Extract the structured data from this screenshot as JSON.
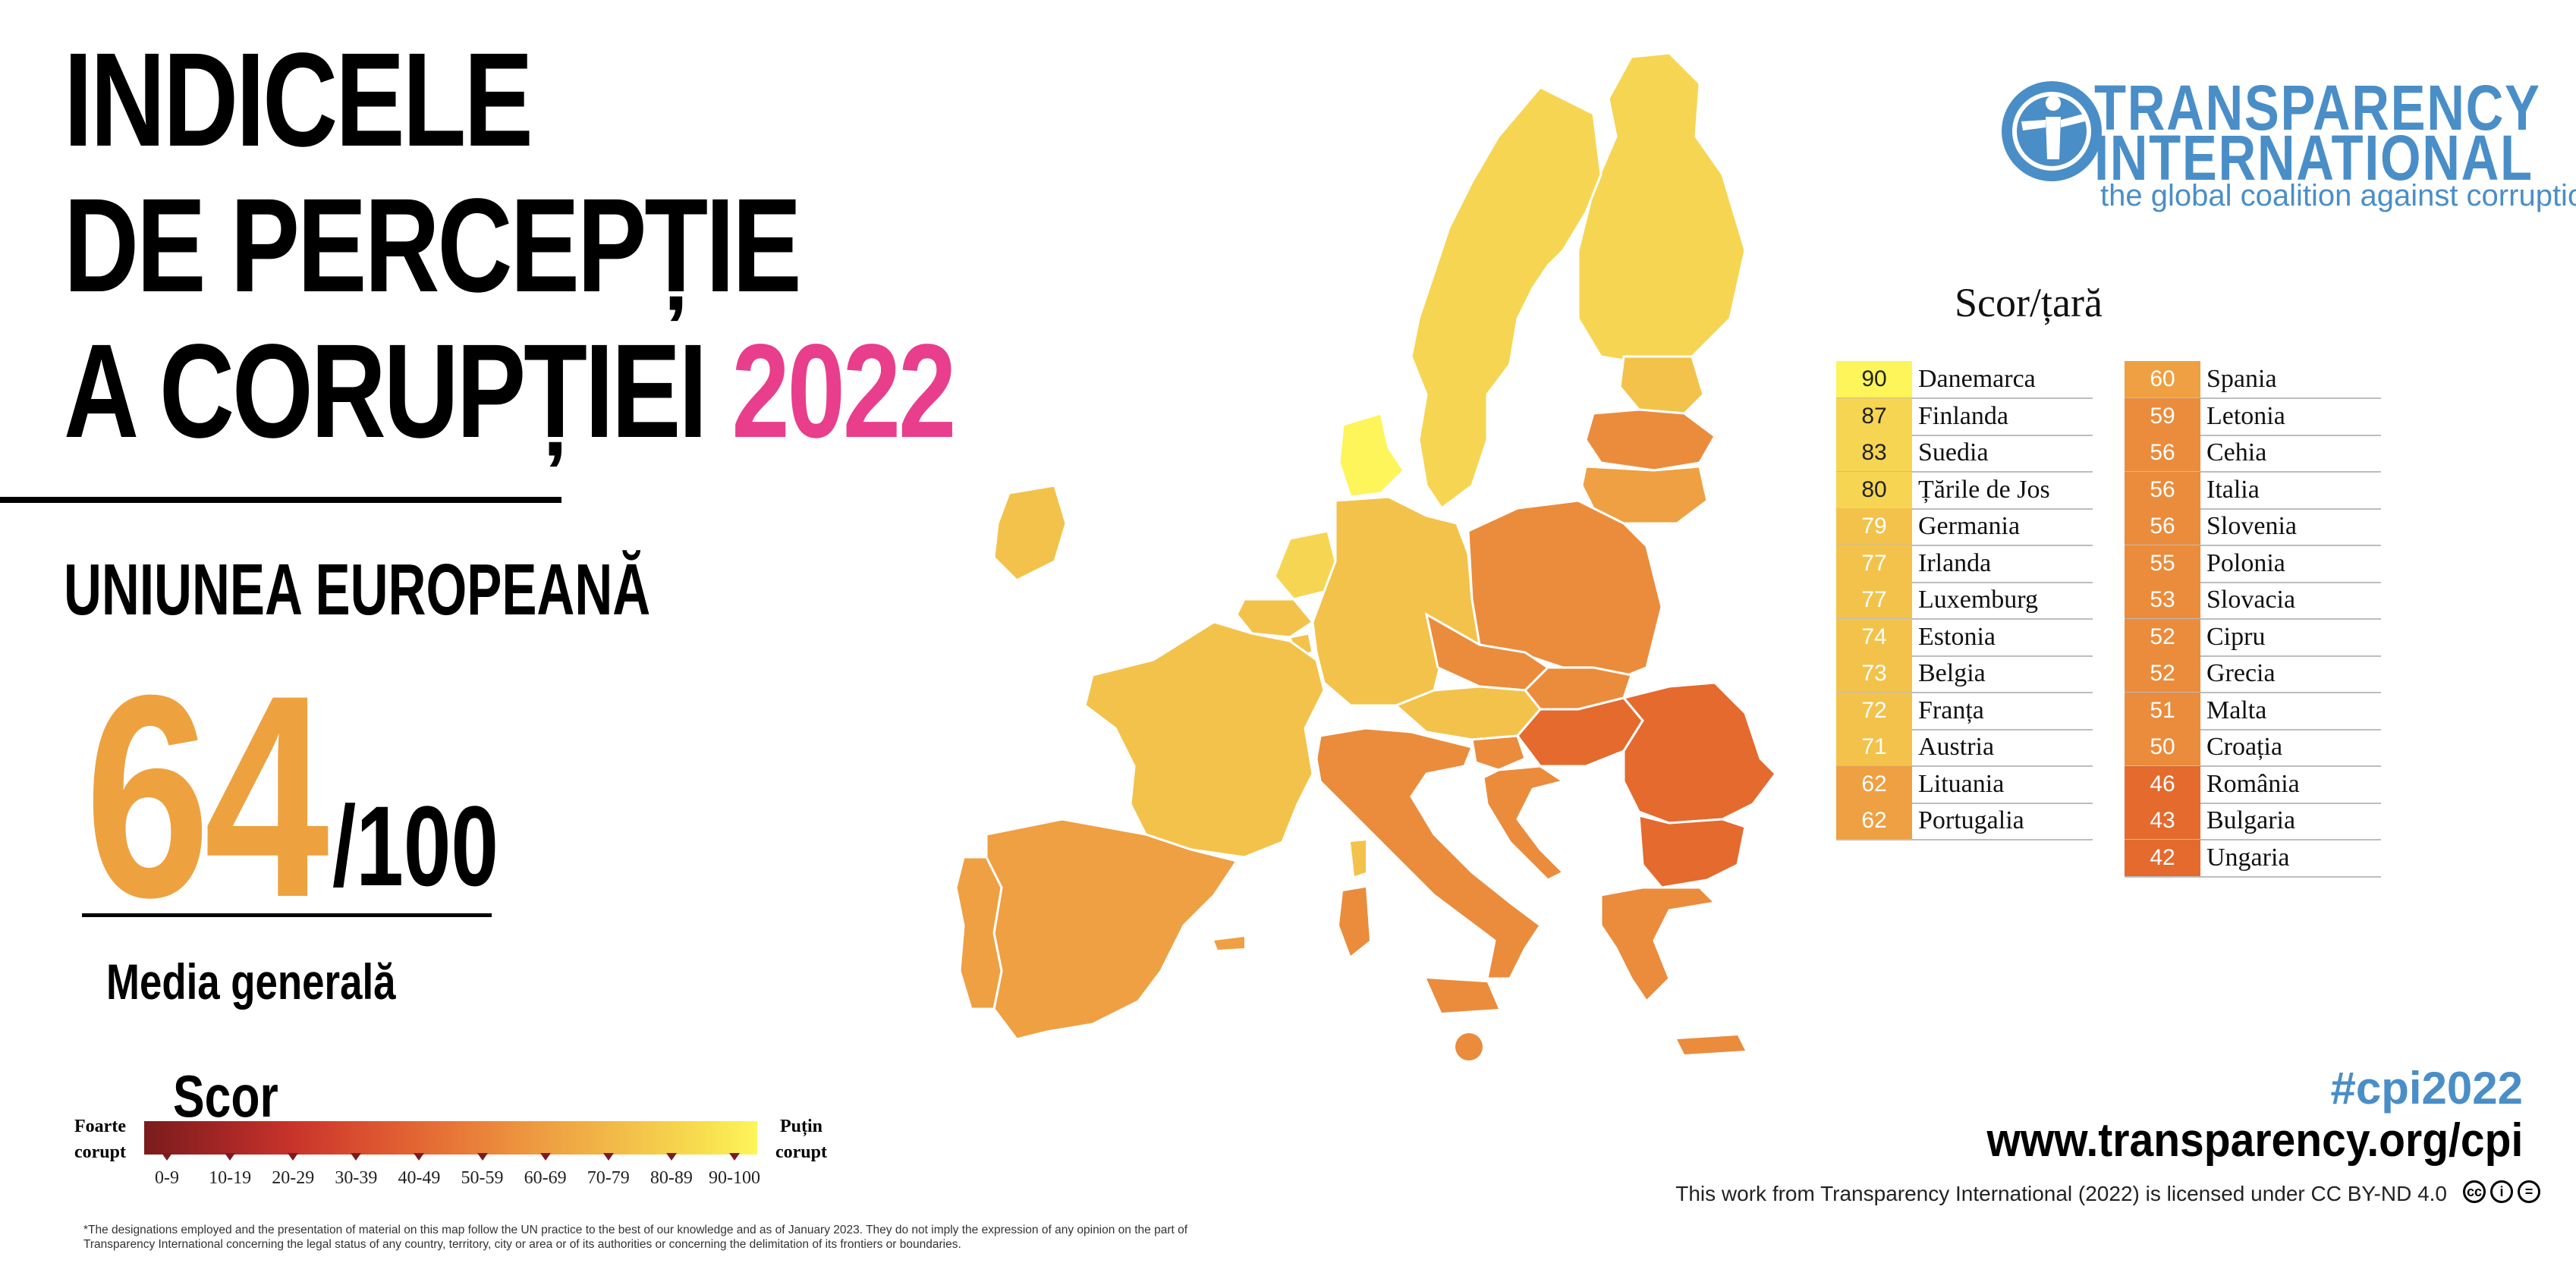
{
  "title": {
    "line1": "INDICELE",
    "line2": "DE PERCEPȚIE",
    "line3": "A CORUPȚIEI",
    "year": "2022"
  },
  "region": "UNIUNEA EUROPEANĂ",
  "average": {
    "score": "64",
    "max": "/100",
    "label": "Media generală"
  },
  "legend": {
    "title": "Scor",
    "low_label": "Foarte corupt",
    "high_label": "Puțin corupt",
    "ranges": [
      "0-9",
      "10-19",
      "20-29",
      "30-39",
      "40-49",
      "50-59",
      "60-69",
      "70-79",
      "80-89",
      "90-100"
    ]
  },
  "logo": {
    "line1": "TRANSPARENCY",
    "line2": "INTERNATIONAL",
    "tagline": "the global coalition against corruption"
  },
  "table": {
    "title": "Scor/țară",
    "left": [
      {
        "score": "90",
        "country": "Danemarca",
        "color": "#fdf55a"
      },
      {
        "score": "87",
        "country": "Finlanda",
        "color": "#f6d553"
      },
      {
        "score": "83",
        "country": "Suedia",
        "color": "#f6d553"
      },
      {
        "score": "80",
        "country": "Țările de Jos",
        "color": "#f6d553"
      },
      {
        "score": "79",
        "country": "Germania",
        "color": "#f3c24a"
      },
      {
        "score": "77",
        "country": "Irlanda",
        "color": "#f3c24a"
      },
      {
        "score": "77",
        "country": "Luxemburg",
        "color": "#f3c24a"
      },
      {
        "score": "74",
        "country": "Estonia",
        "color": "#f3c24a"
      },
      {
        "score": "73",
        "country": "Belgia",
        "color": "#f3c24a"
      },
      {
        "score": "72",
        "country": "Franța",
        "color": "#f3c24a"
      },
      {
        "score": "71",
        "country": "Austria",
        "color": "#f3c24a"
      },
      {
        "score": "62",
        "country": "Lituania",
        "color": "#eea042"
      },
      {
        "score": "62",
        "country": "Portugalia",
        "color": "#eea042"
      }
    ],
    "right": [
      {
        "score": "60",
        "country": "Spania",
        "color": "#eea042"
      },
      {
        "score": "59",
        "country": "Letonia",
        "color": "#ea8c3c"
      },
      {
        "score": "56",
        "country": "Cehia",
        "color": "#ea8c3c"
      },
      {
        "score": "56",
        "country": "Italia",
        "color": "#ea8c3c"
      },
      {
        "score": "56",
        "country": "Slovenia",
        "color": "#ea8c3c"
      },
      {
        "score": "55",
        "country": "Polonia",
        "color": "#ea8c3c"
      },
      {
        "score": "53",
        "country": "Slovacia",
        "color": "#ea8c3c"
      },
      {
        "score": "52",
        "country": "Cipru",
        "color": "#ea8c3c"
      },
      {
        "score": "52",
        "country": "Grecia",
        "color": "#ea8c3c"
      },
      {
        "score": "51",
        "country": "Malta",
        "color": "#ea8c3c"
      },
      {
        "score": "50",
        "country": "Croația",
        "color": "#ea8c3c"
      },
      {
        "score": "46",
        "country": "România",
        "color": "#e46a2e"
      },
      {
        "score": "43",
        "country": "Bulgaria",
        "color": "#e46a2e"
      },
      {
        "score": "42",
        "country": "Ungaria",
        "color": "#e46a2e"
      }
    ]
  },
  "hashtag": "#cpi2022",
  "url": "www.transparency.org/cpi",
  "license": "This work from Transparency International (2022) is licensed under CC BY-ND 4.0",
  "footnote": "*The designations employed and the presentation of material on this map follow the UN practice to the best of our knowledge and as of January 2023. They do not imply the expression of any opinion on the part of Transparency International concerning the legal status of any country, territory, city or area or of its authorities or concerning the delimitation of its frontiers or boundaries.",
  "colors": {
    "year": "#e83e8c",
    "average": "#eda23f",
    "brand": "#4a8ec7"
  }
}
